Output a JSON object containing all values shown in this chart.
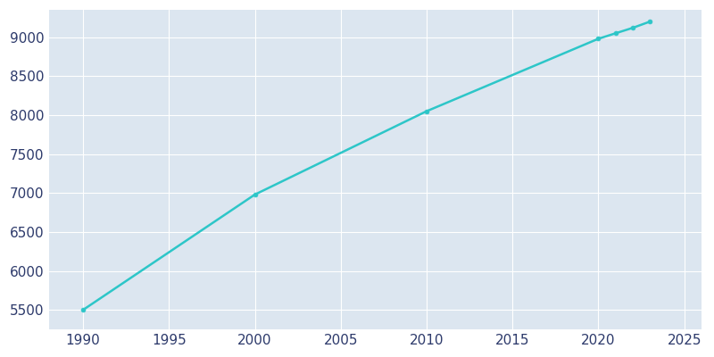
{
  "years": [
    1990,
    2000,
    2010,
    2020,
    2021,
    2022,
    2023
  ],
  "population": [
    5500,
    6980,
    8050,
    8980,
    9050,
    9120,
    9200
  ],
  "line_color": "#2DC6C8",
  "marker": "o",
  "marker_size": 3.5,
  "line_width": 1.8,
  "plot_bg_color": "#DCE6F0",
  "fig_bg_color": "#FFFFFF",
  "xlim": [
    1988,
    2026
  ],
  "ylim": [
    5250,
    9350
  ],
  "xticks": [
    1990,
    1995,
    2000,
    2005,
    2010,
    2015,
    2020,
    2025
  ],
  "yticks": [
    5500,
    6000,
    6500,
    7000,
    7500,
    8000,
    8500,
    9000
  ],
  "tick_color": "#2D3A6B",
  "tick_fontsize": 11,
  "grid_color": "#FFFFFF",
  "grid_linewidth": 0.8
}
